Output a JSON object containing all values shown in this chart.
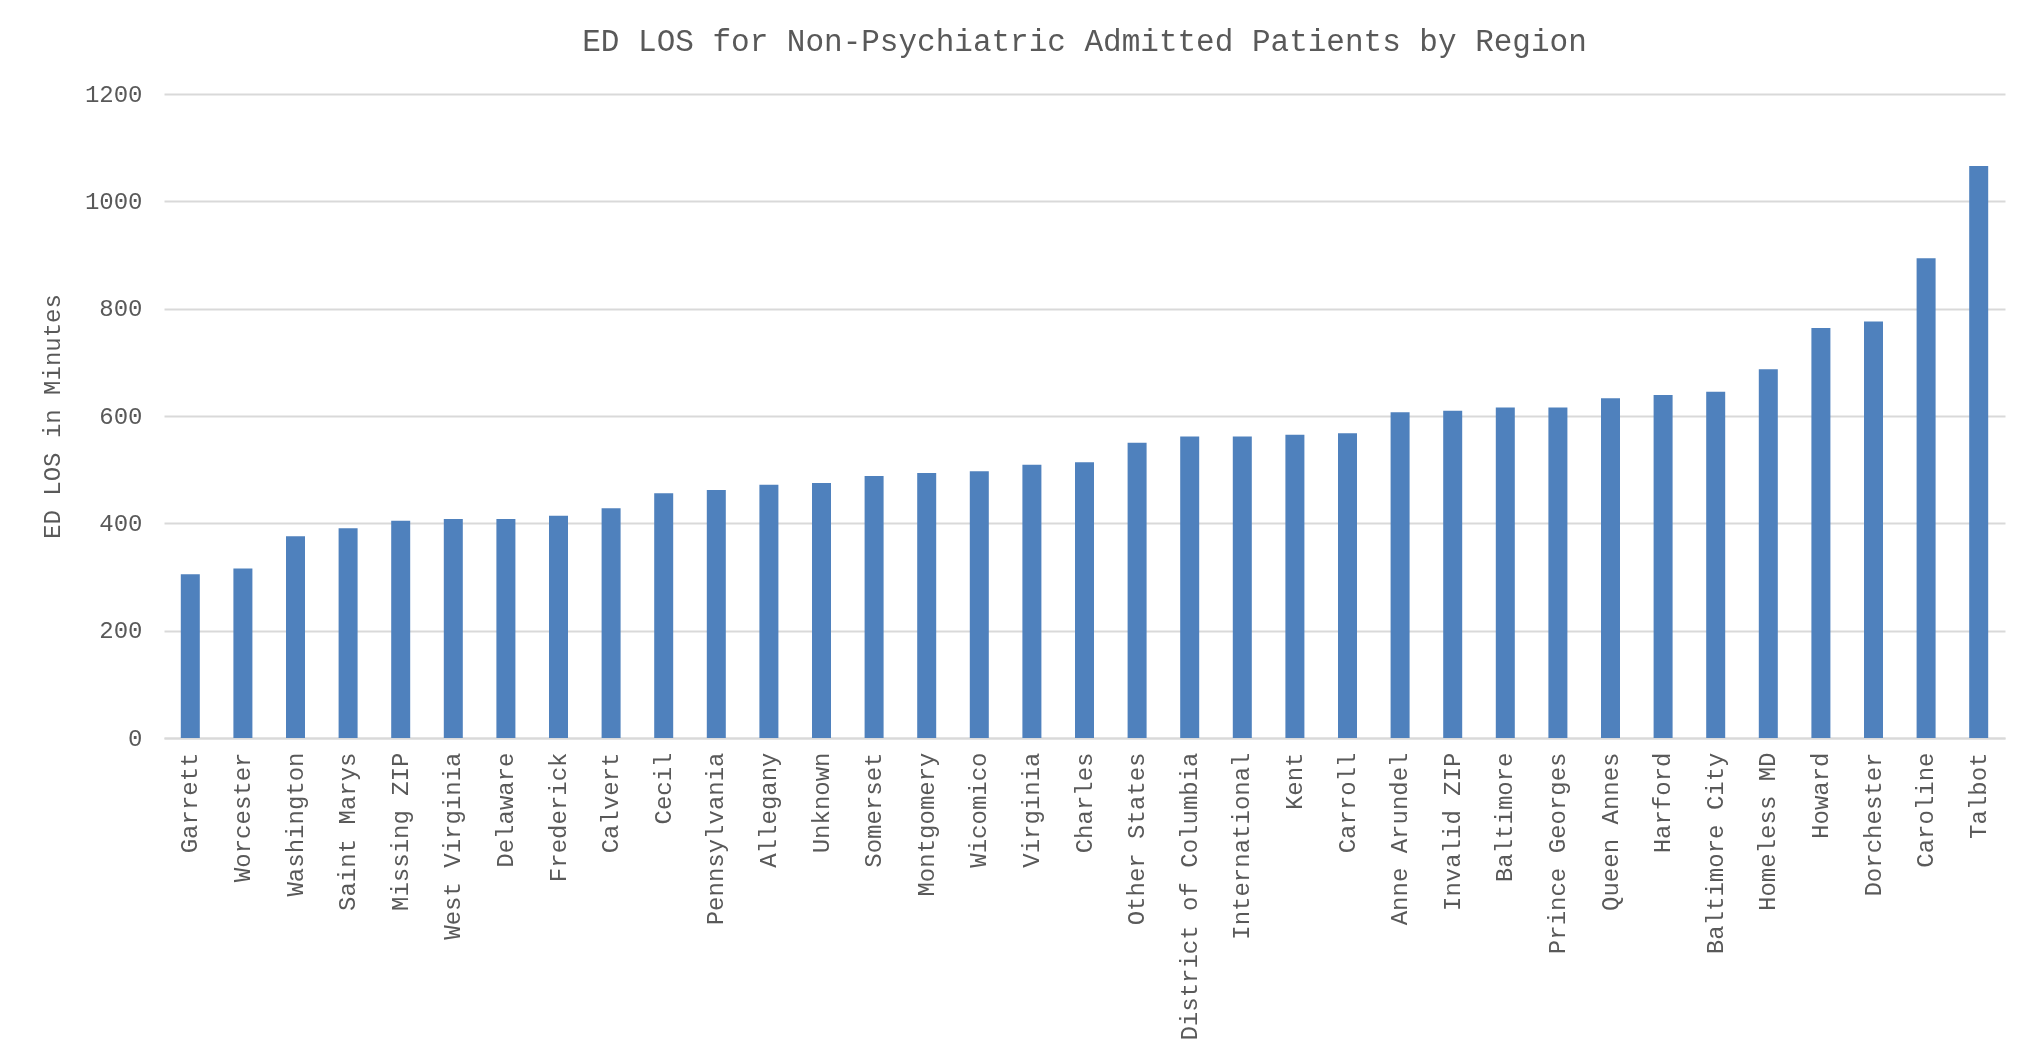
{
  "chart_data": {
    "type": "bar",
    "title": "ED LOS for Non-Psychiatric Admitted Patients by Region",
    "ylabel": "ED LOS in Minutes",
    "categories": [
      "Garrett",
      "Worcester",
      "Washington",
      "Saint Marys",
      "Missing ZIP",
      "West Virginia",
      "Delaware",
      "Frederick",
      "Calvert",
      "Cecil",
      "Pennsylvania",
      "Allegany",
      "Unknown",
      "Somerset",
      "Montgomery",
      "Wicomico",
      "Virginia",
      "Charles",
      "Other States",
      "District of Columbia",
      "International",
      "Kent",
      "Carroll",
      "Anne Arundel",
      "Invalid ZIP",
      "Baltimore",
      "Prince Georges",
      "Queen Annes",
      "Harford",
      "Baltimore City",
      "Homeless MD",
      "Howard",
      "Dorchester",
      "Caroline",
      "Talbot"
    ],
    "values": [
      305,
      316,
      376,
      391,
      405,
      408,
      408,
      414,
      428,
      456,
      462,
      472,
      475,
      488,
      494,
      497,
      509,
      514,
      550,
      562,
      562,
      565,
      568,
      607,
      610,
      616,
      616,
      633,
      639,
      645,
      687,
      764,
      776,
      894,
      1066
    ],
    "color": "#4f81bd",
    "ylim": [
      0,
      1200
    ],
    "yticks": [
      0,
      200,
      400,
      600,
      800,
      1000,
      1200
    ],
    "grid": "y"
  }
}
